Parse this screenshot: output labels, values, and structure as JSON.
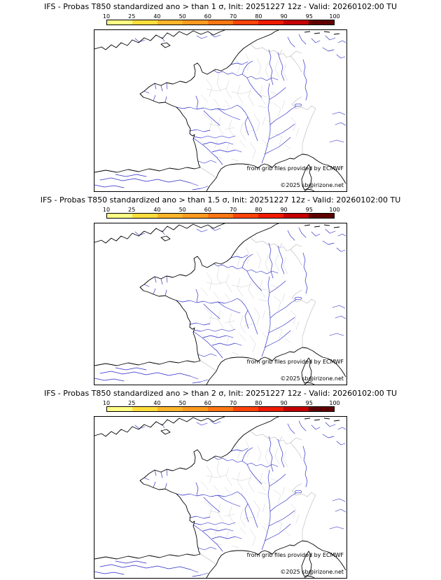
{
  "panels": [
    {
      "title": "IFS - Probas T850  standardized ano > than 1 σ, Init: 20251227 12z - Valid: 20260102:00 TU"
    },
    {
      "title": "IFS - Probas T850  standardized ano > than 1.5 σ, Init: 20251227 12z - Valid: 20260102:00 TU"
    },
    {
      "title": "IFS - Probas T850  standardized ano > than 2 σ, Init: 20251227 12z - Valid: 20260102:00 TU"
    }
  ],
  "colorbar": {
    "ticks": [
      "10",
      "25",
      "40",
      "50",
      "60",
      "70",
      "80",
      "90",
      "95",
      "100"
    ],
    "colors": [
      "#ffff87",
      "#ffde3c",
      "#ffb52b",
      "#ff9a20",
      "#ff7714",
      "#ff4409",
      "#ef1a00",
      "#c40000",
      "#5e0000"
    ]
  },
  "map": {
    "attribution_line1": "from grib files provided by ECMWF",
    "attribution_line2": "©2025 sb@irizone.net",
    "coast_color": "#000000",
    "river_color": "#2929c8",
    "department_border_color": "#cdcdcd",
    "country_border_color": "#b8b8b8"
  }
}
